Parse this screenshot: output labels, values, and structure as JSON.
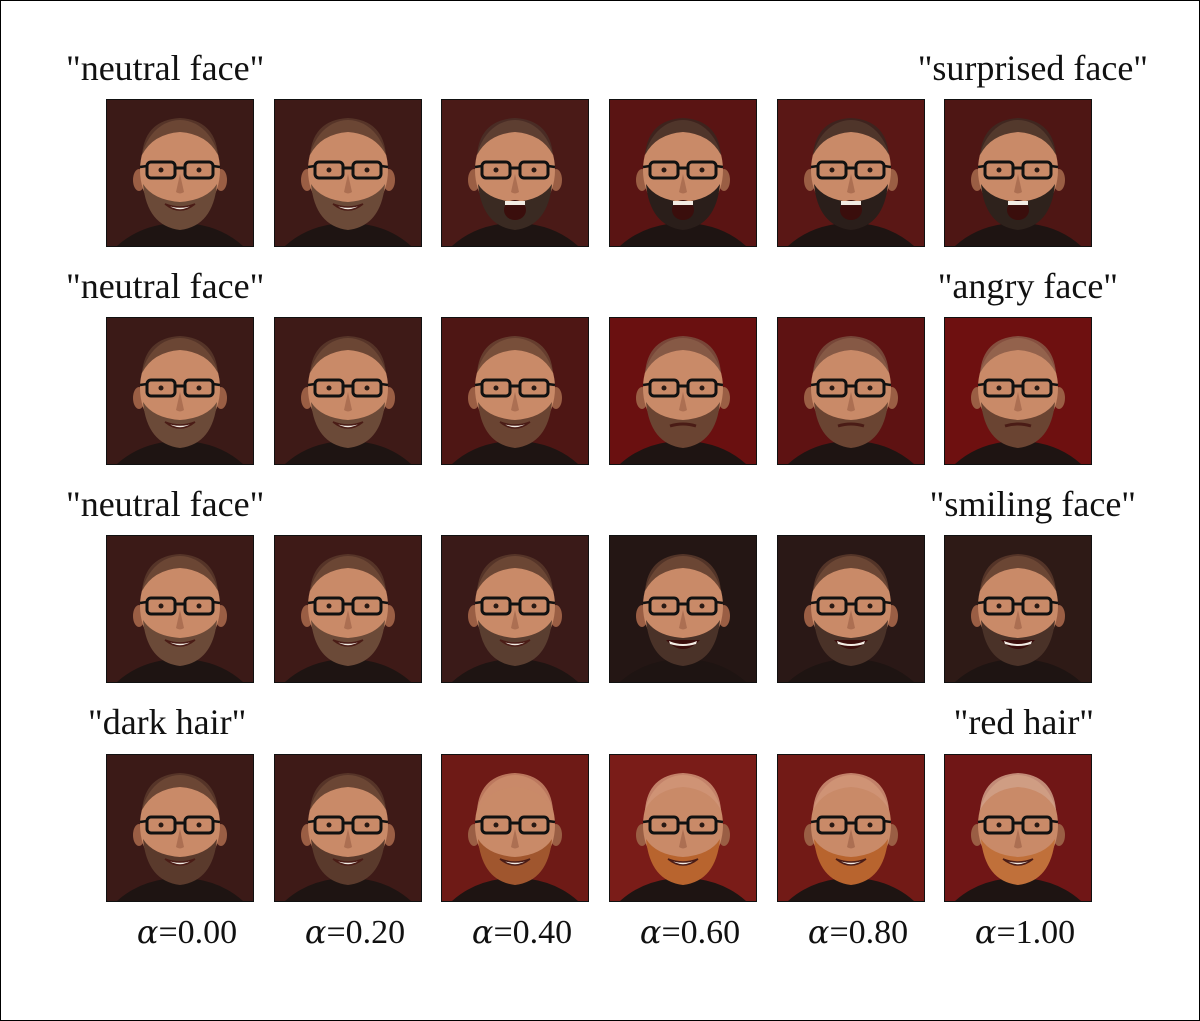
{
  "rows": [
    {
      "start_prompt": "\"neutral face\"",
      "end_prompt": "\"surprised face\"",
      "tiles": [
        {
          "bg": "#3b1a17",
          "hair": "#5a3a2c",
          "beard": "#6b4a38",
          "mouth": "smile"
        },
        {
          "bg": "#3e1a17",
          "hair": "#5a3a2c",
          "beard": "#6b4a38",
          "mouth": "smile"
        },
        {
          "bg": "#4a1a17",
          "hair": "#4a3028",
          "beard": "#3a2a22",
          "mouth": "open"
        },
        {
          "bg": "#5a1413",
          "hair": "#3a2620",
          "beard": "#2a1e1a",
          "mouth": "open"
        },
        {
          "bg": "#5a1715",
          "hair": "#3a2620",
          "beard": "#2a1e1a",
          "mouth": "open"
        },
        {
          "bg": "#4e1614",
          "hair": "#3e2a22",
          "beard": "#2e221c",
          "mouth": "open"
        }
      ]
    },
    {
      "start_prompt": "\"neutral face\"",
      "end_prompt": "\"angry face\"",
      "tiles": [
        {
          "bg": "#3b1a17",
          "hair": "#5a3a2c",
          "beard": "#6b4a38",
          "mouth": "smile"
        },
        {
          "bg": "#3e1a17",
          "hair": "#5a3a2c",
          "beard": "#6b4a38",
          "mouth": "smile"
        },
        {
          "bg": "#4e1614",
          "hair": "#6a4432",
          "beard": "#6a4432",
          "mouth": "smile"
        },
        {
          "bg": "#6a1010",
          "hair": "#7a5040",
          "beard": "#6a4432",
          "mouth": "flat"
        },
        {
          "bg": "#5e1212",
          "hair": "#7a5040",
          "beard": "#6a4432",
          "mouth": "flat"
        },
        {
          "bg": "#6e1010",
          "hair": "#8a5a48",
          "beard": "#6a4432",
          "mouth": "flat"
        }
      ]
    },
    {
      "start_prompt": "\"neutral face\"",
      "end_prompt": "\"smiling face\"",
      "tiles": [
        {
          "bg": "#3b1a17",
          "hair": "#5a3a2c",
          "beard": "#6b4a38",
          "mouth": "smile"
        },
        {
          "bg": "#3e1a17",
          "hair": "#5a3a2c",
          "beard": "#6b4a38",
          "mouth": "smile"
        },
        {
          "bg": "#3a1a18",
          "hair": "#5a3a2c",
          "beard": "#5a3e30",
          "mouth": "smile"
        },
        {
          "bg": "#241614",
          "hair": "#5a3a2c",
          "beard": "#4a3228",
          "mouth": "grin"
        },
        {
          "bg": "#2a1816",
          "hair": "#5a3a2c",
          "beard": "#4a3228",
          "mouth": "grin"
        },
        {
          "bg": "#2e1a16",
          "hair": "#5a3a2c",
          "beard": "#4a3228",
          "mouth": "grin"
        }
      ]
    },
    {
      "start_prompt": "\"dark hair\"",
      "end_prompt": "\"red hair\"",
      "tiles": [
        {
          "bg": "#3b1a17",
          "hair": "#5a3a2c",
          "beard": "#5a3a2c",
          "mouth": "smile"
        },
        {
          "bg": "#3e1a17",
          "hair": "#5a3a2c",
          "beard": "#5a3a2c",
          "mouth": "smile"
        },
        {
          "bg": "#6e1a16",
          "hair": "#c9886a",
          "beard": "#a0562e",
          "mouth": "smile"
        },
        {
          "bg": "#7a1c18",
          "hair": "#d09478",
          "beard": "#b8642e",
          "mouth": "smile"
        },
        {
          "bg": "#721a16",
          "hair": "#d09478",
          "beard": "#b8642e",
          "mouth": "smile"
        },
        {
          "bg": "#701616",
          "hair": "#d0a088",
          "beard": "#c0703a",
          "mouth": "smile"
        }
      ]
    }
  ],
  "alpha_symbol": "α",
  "alphas": [
    "=0.00",
    "=0.20",
    "=0.40",
    "=0.60",
    "=0.80",
    "=1.00"
  ],
  "colors": {
    "skin": "#c98a68",
    "skin_shadow": "#9a5e44",
    "glasses": "#111111"
  }
}
